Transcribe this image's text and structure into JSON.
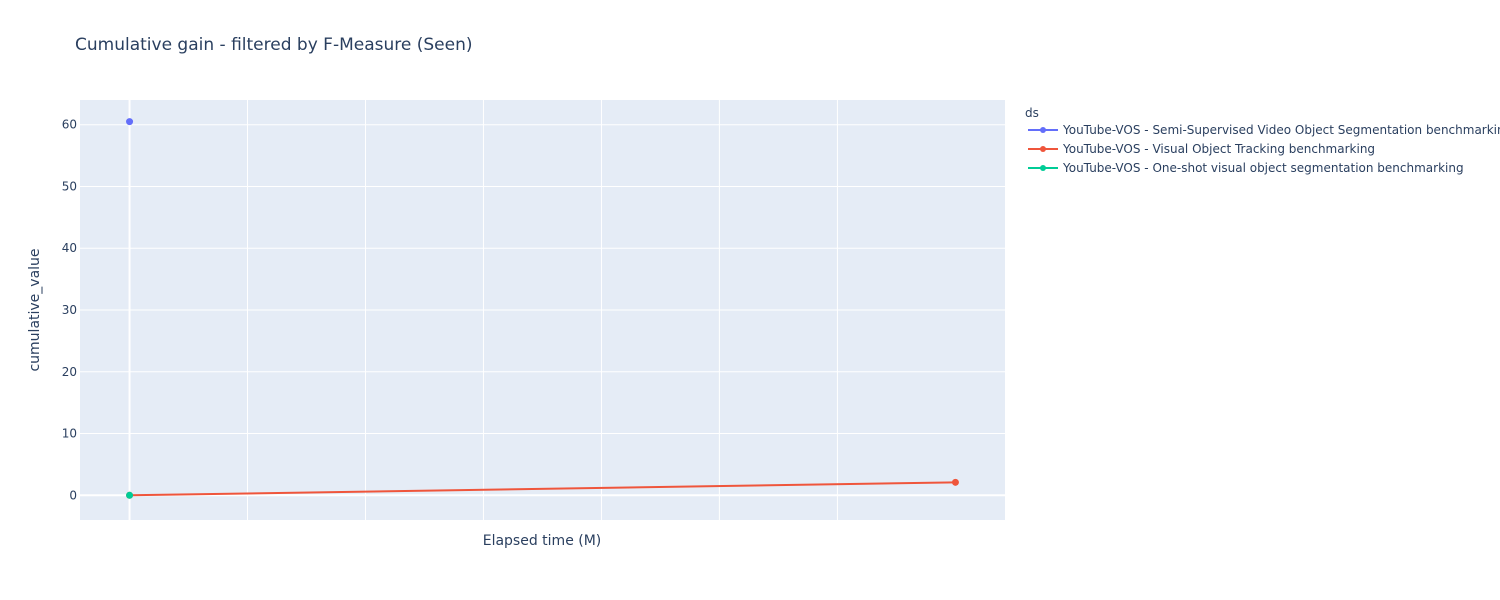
{
  "chart_data": {
    "type": "line",
    "title": "Cumulative gain - filtered by F-Measure (Seen)",
    "xlabel": "Elapsed time (M)",
    "ylabel": "cumulative_value",
    "legend_title": "ds",
    "legend_placement": "top-right outside",
    "grid": true,
    "x_tick_labels_shown": false,
    "ylim": [
      -4,
      64
    ],
    "xlim": [
      -0.06,
      1.06
    ],
    "y_ticks": [
      0,
      10,
      20,
      30,
      40,
      50,
      60
    ],
    "x_gridlines": [
      0.1428,
      0.2857,
      0.4285,
      0.5714,
      0.7142,
      0.8571
    ],
    "series": [
      {
        "name": "YouTube-VOS - Semi-Supervised Video Object Segmentation benchmarking",
        "color": "#636efa",
        "points": [
          {
            "x": 0,
            "y": 60.5
          }
        ]
      },
      {
        "name": "YouTube-VOS - Visual Object Tracking benchmarking",
        "color": "#ef553b",
        "points": [
          {
            "x": 0,
            "y": 0
          },
          {
            "x": 1,
            "y": 2.1
          }
        ]
      },
      {
        "name": "YouTube-VOS - One-shot visual object segmentation benchmarking",
        "color": "#00cc96",
        "points": [
          {
            "x": 0,
            "y": 0
          }
        ]
      }
    ]
  }
}
